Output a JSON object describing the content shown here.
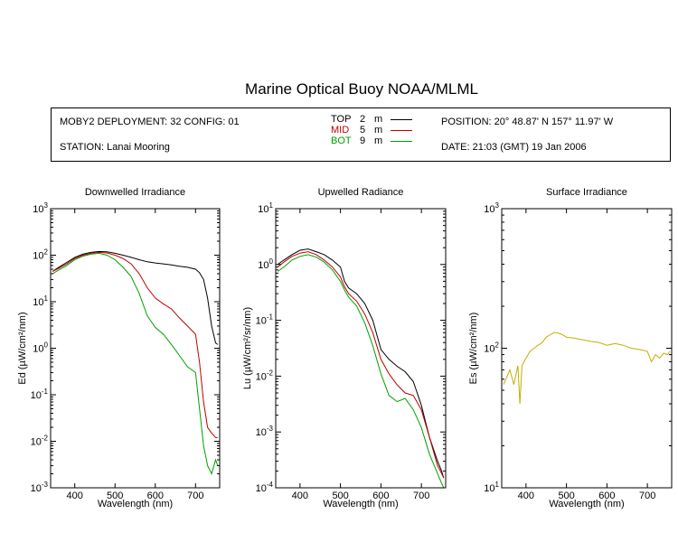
{
  "title": "Marine Optical Buoy NOAA/MLML",
  "header": {
    "deployment": "MOBY2 DEPLOYMENT: 32 CONFIG: 01",
    "station": "STATION: Lanai Mooring",
    "position": "POSITION: 20° 48.87' N   157° 11.97' W",
    "date": "DATE: 21:03 (GMT) 19 Jan 2006",
    "legend": [
      {
        "name": "TOP",
        "depth": "2",
        "unit": "m",
        "color": "#000000"
      },
      {
        "name": "MID",
        "depth": "5",
        "unit": "m",
        "color": "#c00000"
      },
      {
        "name": "BOT",
        "depth": "9",
        "unit": "m",
        "color": "#00a000"
      }
    ]
  },
  "chart_data": [
    {
      "type": "line",
      "title": "Downwelled Irradiance",
      "xlabel": "Wavelength (nm)",
      "ylabel": "Ed  (µW/cm²/nm)",
      "xlim": [
        340,
        760
      ],
      "ylim": [
        0.001,
        1000
      ],
      "yscale": "log",
      "xticks": [
        400,
        500,
        600,
        700
      ],
      "yticks": [
        {
          "value": 1000,
          "base": "10",
          "exp": "3"
        },
        {
          "value": 100,
          "base": "10",
          "exp": "2"
        },
        {
          "value": 10,
          "base": "10",
          "exp": "1"
        },
        {
          "value": 1,
          "base": "10",
          "exp": "0"
        },
        {
          "value": 0.1,
          "base": "10",
          "exp": "-1"
        },
        {
          "value": 0.01,
          "base": "10",
          "exp": "-2"
        },
        {
          "value": 0.001,
          "base": "10",
          "exp": "-3"
        }
      ],
      "series": [
        {
          "name": "TOP",
          "color": "#000000",
          "x": [
            345,
            360,
            380,
            400,
            420,
            440,
            460,
            480,
            500,
            520,
            540,
            560,
            580,
            600,
            620,
            640,
            660,
            680,
            700,
            710,
            720,
            730,
            740,
            750,
            755
          ],
          "y": [
            45,
            55,
            70,
            90,
            105,
            115,
            120,
            118,
            110,
            100,
            90,
            80,
            72,
            68,
            65,
            62,
            58,
            55,
            50,
            42,
            30,
            12,
            3,
            1.3,
            1.2
          ]
        },
        {
          "name": "MID",
          "color": "#c00000",
          "x": [
            345,
            360,
            380,
            400,
            420,
            440,
            460,
            480,
            500,
            520,
            540,
            560,
            580,
            600,
            620,
            640,
            660,
            680,
            700,
            710,
            720,
            730,
            740,
            750,
            755
          ],
          "y": [
            45,
            52,
            65,
            85,
            100,
            110,
            115,
            112,
            100,
            85,
            65,
            40,
            20,
            12,
            9,
            7,
            4.5,
            3,
            2,
            0.5,
            0.07,
            0.02,
            0.015,
            0.012,
            0.012
          ]
        },
        {
          "name": "BOT",
          "color": "#00a000",
          "x": [
            345,
            360,
            380,
            400,
            420,
            440,
            460,
            480,
            500,
            520,
            540,
            560,
            580,
            600,
            620,
            640,
            660,
            680,
            700,
            710,
            720,
            730,
            740,
            750,
            755
          ],
          "y": [
            40,
            48,
            60,
            80,
            95,
            105,
            110,
            100,
            80,
            55,
            35,
            15,
            5,
            2.8,
            2,
            1.2,
            0.7,
            0.4,
            0.3,
            0.05,
            0.008,
            0.003,
            0.002,
            0.004,
            0.003
          ]
        }
      ]
    },
    {
      "type": "line",
      "title": "Upwelled Radiance",
      "xlabel": "Wavelength (nm)",
      "ylabel": "Lu  (µW/cm²/sr/nm)",
      "xlim": [
        340,
        760
      ],
      "ylim": [
        0.0001,
        10
      ],
      "yscale": "log",
      "xticks": [
        400,
        500,
        600,
        700
      ],
      "yticks": [
        {
          "value": 10,
          "base": "10",
          "exp": "1"
        },
        {
          "value": 1,
          "base": "10",
          "exp": "0"
        },
        {
          "value": 0.1,
          "base": "10",
          "exp": "-1"
        },
        {
          "value": 0.01,
          "base": "10",
          "exp": "-2"
        },
        {
          "value": 0.001,
          "base": "10",
          "exp": "-3"
        },
        {
          "value": 0.0001,
          "base": "10",
          "exp": "-4"
        }
      ],
      "series": [
        {
          "name": "TOP",
          "color": "#000000",
          "x": [
            345,
            360,
            380,
            400,
            420,
            440,
            460,
            480,
            500,
            510,
            520,
            540,
            560,
            580,
            600,
            620,
            640,
            660,
            680,
            700,
            720,
            740,
            750,
            755
          ],
          "y": [
            1.0,
            1.2,
            1.5,
            1.8,
            1.9,
            1.7,
            1.5,
            1.2,
            0.9,
            0.5,
            0.38,
            0.3,
            0.2,
            0.1,
            0.03,
            0.02,
            0.015,
            0.012,
            0.008,
            0.003,
            0.0008,
            0.0003,
            0.0002,
            0.00015
          ]
        },
        {
          "name": "MID",
          "color": "#c00000",
          "x": [
            345,
            360,
            380,
            400,
            420,
            440,
            460,
            480,
            500,
            510,
            520,
            540,
            560,
            580,
            600,
            620,
            640,
            660,
            680,
            700,
            720,
            740,
            750,
            755
          ],
          "y": [
            0.9,
            1.1,
            1.4,
            1.6,
            1.7,
            1.5,
            1.2,
            0.9,
            0.6,
            0.4,
            0.3,
            0.22,
            0.13,
            0.06,
            0.02,
            0.011,
            0.007,
            0.005,
            0.0045,
            0.0025,
            0.0008,
            0.00025,
            0.00018,
            0.00015
          ]
        },
        {
          "name": "BOT",
          "color": "#00a000",
          "x": [
            345,
            360,
            380,
            400,
            420,
            440,
            460,
            480,
            500,
            510,
            520,
            540,
            560,
            580,
            600,
            620,
            640,
            660,
            680,
            700,
            720,
            740,
            750,
            755
          ],
          "y": [
            0.75,
            0.9,
            1.2,
            1.4,
            1.5,
            1.35,
            1.1,
            0.8,
            0.5,
            0.35,
            0.26,
            0.18,
            0.09,
            0.035,
            0.011,
            0.0045,
            0.0035,
            0.004,
            0.0025,
            0.0012,
            0.0004,
            0.00018,
            0.00012,
            0.0001
          ]
        }
      ]
    },
    {
      "type": "line",
      "title": "Surface Irradiance",
      "xlabel": "Wavelength (nm)",
      "ylabel": "Es  (µW/cm²/nm)",
      "xlim": [
        340,
        760
      ],
      "ylim": [
        10,
        1000
      ],
      "yscale": "log",
      "xticks": [
        400,
        500,
        600,
        700
      ],
      "yticks": [
        {
          "value": 1000,
          "base": "10",
          "exp": "3"
        },
        {
          "value": 100,
          "base": "10",
          "exp": "2"
        },
        {
          "value": 10,
          "base": "10",
          "exp": "1"
        }
      ],
      "series": [
        {
          "name": "Es",
          "color": "#c0b000",
          "x": [
            345,
            350,
            360,
            370,
            380,
            385,
            390,
            400,
            410,
            420,
            430,
            440,
            450,
            460,
            470,
            480,
            490,
            500,
            520,
            540,
            560,
            580,
            600,
            620,
            640,
            660,
            680,
            700,
            710,
            720,
            730,
            740,
            750,
            755
          ],
          "y": [
            55,
            60,
            70,
            55,
            75,
            40,
            75,
            85,
            95,
            100,
            105,
            110,
            120,
            125,
            130,
            128,
            125,
            120,
            118,
            115,
            112,
            110,
            105,
            108,
            105,
            100,
            98,
            95,
            80,
            90,
            85,
            92,
            90,
            95
          ]
        }
      ]
    }
  ]
}
